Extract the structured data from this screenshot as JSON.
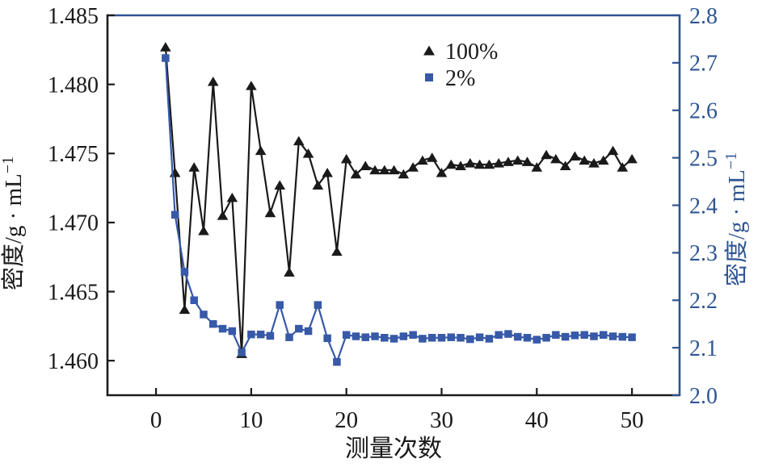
{
  "figure": {
    "background": "#ffffff",
    "colors": {
      "series_100": "#1a1a1a",
      "series_2": "#3759a8",
      "right_axis_blue": "#2e5493",
      "axis_black": "#1a1a1a"
    },
    "legend": {
      "items": [
        {
          "label": "100%",
          "marker": "triangle",
          "color": "#1a1a1a"
        },
        {
          "label": "2%",
          "marker": "square",
          "color": "#3759a8"
        }
      ]
    }
  },
  "chart_data": {
    "type": "line",
    "title": "",
    "xlabel": "测量次数",
    "ylabel_left": {
      "base": "密度/g · mL",
      "sup": "−1"
    },
    "ylabel_right": {
      "base": "密度/g · mL",
      "sup": "−1"
    },
    "x": [
      1,
      2,
      3,
      4,
      5,
      6,
      7,
      8,
      9,
      10,
      11,
      12,
      13,
      14,
      15,
      16,
      17,
      18,
      19,
      20,
      21,
      22,
      23,
      24,
      25,
      26,
      27,
      28,
      29,
      30,
      31,
      32,
      33,
      34,
      35,
      36,
      37,
      38,
      39,
      40,
      41,
      42,
      43,
      44,
      45,
      46,
      47,
      48,
      49,
      50
    ],
    "series": [
      {
        "name": "100%",
        "axis": "left",
        "marker": "triangle",
        "color": "#1a1a1a",
        "values": [
          1.4827,
          1.4736,
          1.4637,
          1.474,
          1.4694,
          1.4802,
          1.4705,
          1.4718,
          1.4605,
          1.4799,
          1.4752,
          1.4707,
          1.4727,
          1.4664,
          1.4759,
          1.475,
          1.4727,
          1.4736,
          1.4679,
          1.4746,
          1.4735,
          1.4741,
          1.4738,
          1.4738,
          1.4738,
          1.4735,
          1.474,
          1.4745,
          1.4747,
          1.4736,
          1.4742,
          1.4741,
          1.4743,
          1.4742,
          1.4742,
          1.4743,
          1.4744,
          1.4745,
          1.4744,
          1.474,
          1.4749,
          1.4746,
          1.4741,
          1.4748,
          1.4745,
          1.4743,
          1.4745,
          1.4752,
          1.474,
          1.4746
        ]
      },
      {
        "name": "2%",
        "axis": "right",
        "marker": "square",
        "color": "#3759a8",
        "values": [
          2.71,
          2.38,
          2.26,
          2.2,
          2.17,
          2.15,
          2.14,
          2.135,
          2.09,
          2.128,
          2.128,
          2.125,
          2.19,
          2.122,
          2.14,
          2.135,
          2.19,
          2.12,
          2.07,
          2.127,
          2.124,
          2.122,
          2.124,
          2.121,
          2.119,
          2.124,
          2.127,
          2.119,
          2.121,
          2.121,
          2.122,
          2.121,
          2.118,
          2.122,
          2.119,
          2.127,
          2.129,
          2.123,
          2.121,
          2.117,
          2.121,
          2.127,
          2.123,
          2.126,
          2.127,
          2.124,
          2.127,
          2.124,
          2.123,
          2.122
        ]
      }
    ],
    "x_axis": {
      "range": [
        -5.1,
        55.0
      ],
      "ticks": [
        0,
        10,
        20,
        30,
        40,
        50
      ],
      "tick_labels": [
        "0",
        "10",
        "20",
        "30",
        "40",
        "50"
      ]
    },
    "y_axis_left": {
      "range": [
        1.4575,
        1.485
      ],
      "ticks": [
        1.485,
        1.48,
        1.475,
        1.47,
        1.465,
        1.46
      ],
      "tick_labels": [
        "1.485",
        "1.480",
        "1.475",
        "1.470",
        "1.465",
        "1.460"
      ]
    },
    "y_axis_right": {
      "range": [
        2.0,
        2.8
      ],
      "ticks": [
        2.8,
        2.7,
        2.6,
        2.5,
        2.4,
        2.3,
        2.2,
        2.1,
        2.0
      ],
      "tick_labels": [
        "2.8",
        "2.7",
        "2.6",
        "2.5",
        "2.4",
        "2.3",
        "2.2",
        "2.1",
        "2.0"
      ]
    },
    "grid": false,
    "legend_position": "top-center-inside"
  }
}
